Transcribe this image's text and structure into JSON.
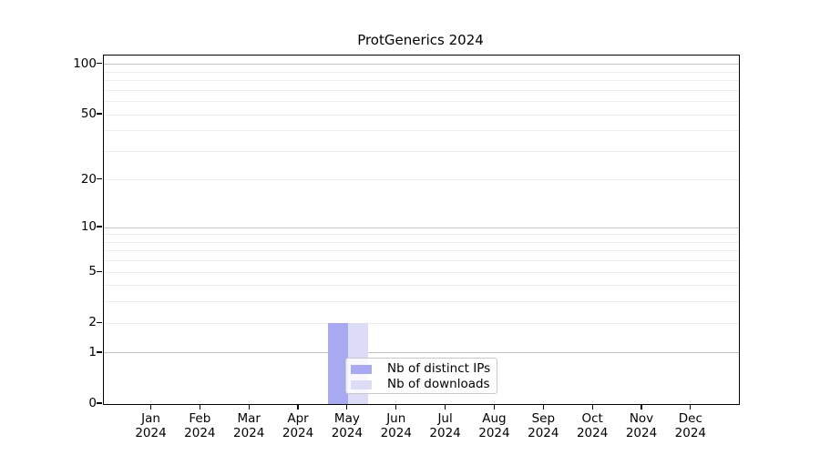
{
  "title": "ProtGenerics 2024",
  "chart_data": {
    "type": "bar",
    "title": "ProtGenerics 2024",
    "categories": [
      "Jan",
      "Feb",
      "Mar",
      "Apr",
      "May",
      "Jun",
      "Jul",
      "Aug",
      "Sep",
      "Oct",
      "Nov",
      "Dec"
    ],
    "year_label": "2024",
    "series": [
      {
        "name": "Nb of distinct IPs",
        "color": "#a9a9f2",
        "values": [
          0,
          0,
          0,
          0,
          2,
          0,
          0,
          0,
          0,
          0,
          0,
          0
        ]
      },
      {
        "name": "Nb of downloads",
        "color": "#dcdcf7",
        "values": [
          0,
          0,
          0,
          0,
          2,
          0,
          0,
          0,
          0,
          0,
          0,
          0
        ]
      }
    ],
    "xlabel": "",
    "ylabel": "",
    "y_scale": "log1p",
    "ylim": [
      0,
      113
    ],
    "y_ticks": [
      {
        "value": 100,
        "label": "100"
      },
      {
        "value": 50,
        "label": "50"
      },
      {
        "value": 20,
        "label": "20"
      },
      {
        "value": 10,
        "label": "10"
      },
      {
        "value": 5,
        "label": "5"
      },
      {
        "value": 2,
        "label": "2"
      },
      {
        "value": 1,
        "label": "1"
      },
      {
        "value": 0,
        "label": "0"
      }
    ],
    "y_major_grid": [
      1,
      10,
      100
    ],
    "y_minor_grid": [
      2,
      3,
      4,
      5,
      6,
      7,
      8,
      9,
      20,
      30,
      40,
      50,
      60,
      70,
      80,
      90
    ],
    "grid": "horizontal-only",
    "legend_position": "inside lower-center",
    "colors": {
      "major_grid": "#c2c2c2",
      "minor_grid": "#ededed",
      "spine": "#000000",
      "text": "#000000",
      "background": "#ffffff"
    }
  },
  "legend": {
    "items": [
      {
        "label": "Nb of distinct IPs",
        "color": "#a9a9f2"
      },
      {
        "label": "Nb of downloads",
        "color": "#dcdcf7"
      }
    ]
  }
}
